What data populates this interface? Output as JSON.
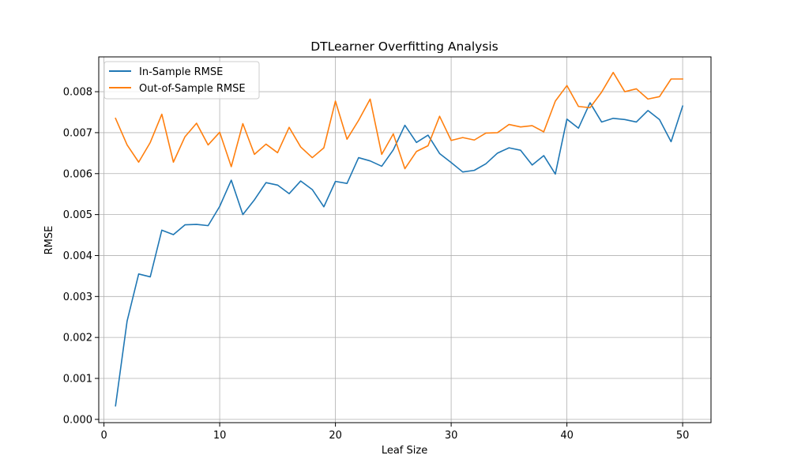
{
  "chart_data": {
    "type": "line",
    "title": "DTLearner Overfitting Analysis",
    "xlabel": "Leaf Size",
    "ylabel": "RMSE",
    "xlim": [
      -0.45,
      52.45
    ],
    "ylim": [
      -8e-05,
      0.00885
    ],
    "xticks": [
      0,
      10,
      20,
      30,
      40,
      50
    ],
    "xtick_labels": [
      "0",
      "10",
      "20",
      "30",
      "40",
      "50"
    ],
    "yticks": [
      0,
      0.001,
      0.002,
      0.003,
      0.004,
      0.005,
      0.006,
      0.007,
      0.008
    ],
    "ytick_labels": [
      "0.000",
      "0.001",
      "0.002",
      "0.003",
      "0.004",
      "0.005",
      "0.006",
      "0.007",
      "0.008"
    ],
    "grid": true,
    "legend_position": "top-left",
    "x": [
      1,
      2,
      3,
      4,
      5,
      6,
      7,
      8,
      9,
      10,
      11,
      12,
      13,
      14,
      15,
      16,
      17,
      18,
      19,
      20,
      21,
      22,
      23,
      24,
      25,
      26,
      27,
      28,
      29,
      30,
      31,
      32,
      33,
      34,
      35,
      36,
      37,
      38,
      39,
      40,
      41,
      42,
      43,
      44,
      45,
      46,
      47,
      48,
      49,
      50
    ],
    "series": [
      {
        "name": "In-Sample RMSE",
        "color": "#1f77b4",
        "values": [
          0.00033,
          0.0024,
          0.00355,
          0.00348,
          0.00462,
          0.00451,
          0.00475,
          0.00476,
          0.00473,
          0.0052,
          0.00584,
          0.005,
          0.00536,
          0.00578,
          0.00572,
          0.00551,
          0.00582,
          0.00561,
          0.00519,
          0.00581,
          0.00576,
          0.00639,
          0.00631,
          0.00618,
          0.00658,
          0.00718,
          0.00676,
          0.00694,
          0.00649,
          0.00627,
          0.00604,
          0.00608,
          0.00624,
          0.0065,
          0.00663,
          0.00657,
          0.00621,
          0.00644,
          0.00599,
          0.00733,
          0.00711,
          0.00773,
          0.00726,
          0.00735,
          0.00732,
          0.00726,
          0.00754,
          0.00732,
          0.00678,
          0.00765
        ]
      },
      {
        "name": "Out-of-Sample RMSE",
        "color": "#ff7f0e",
        "values": [
          0.00735,
          0.0067,
          0.00628,
          0.00676,
          0.00745,
          0.00628,
          0.0069,
          0.00723,
          0.0067,
          0.00701,
          0.00617,
          0.00722,
          0.00647,
          0.00672,
          0.00651,
          0.00713,
          0.00665,
          0.00639,
          0.00663,
          0.00777,
          0.00684,
          0.0073,
          0.00782,
          0.00647,
          0.00697,
          0.00612,
          0.00654,
          0.00668,
          0.0074,
          0.00681,
          0.00688,
          0.00682,
          0.00699,
          0.007,
          0.0072,
          0.00714,
          0.00717,
          0.00702,
          0.00777,
          0.00815,
          0.00764,
          0.00761,
          0.00799,
          0.00847,
          0.008,
          0.00807,
          0.00782,
          0.00788,
          0.00831,
          0.00831
        ]
      }
    ]
  }
}
